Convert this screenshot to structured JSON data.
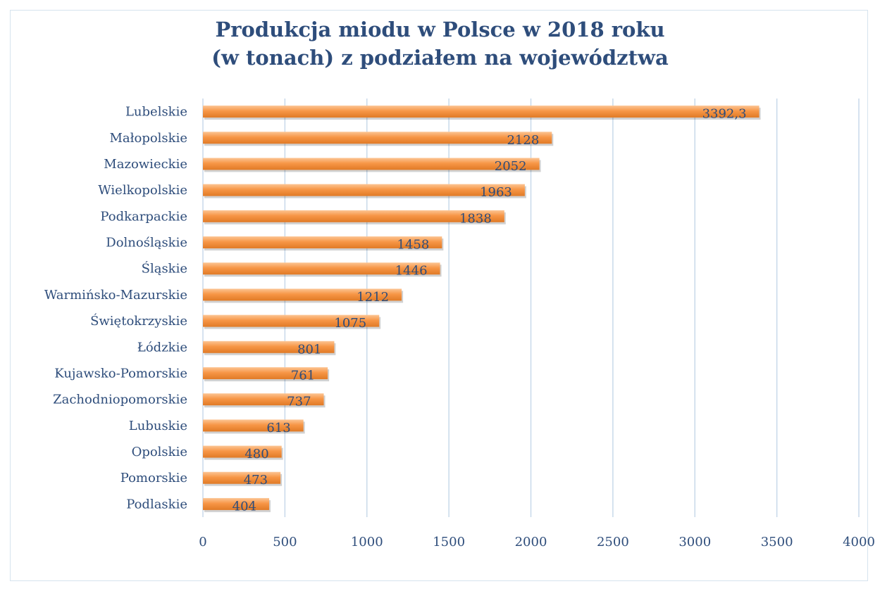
{
  "chart_data": {
    "type": "bar",
    "orientation": "horizontal",
    "title_line1": "Produkcja miodu w Polsce w 2018 roku",
    "title_line2": "(w tonach) z podziałem na województwa",
    "categories": [
      "Lubelskie",
      "Małopolskie",
      "Mazowieckie",
      "Wielkopolskie",
      "Podkarpackie",
      "Dolnośląskie",
      "Śląskie",
      "Warmińsko-Mazurskie",
      "Świętokrzyskie",
      "Łódzkie",
      "Kujawsko-Pomorskie",
      "Zachodniopomorskie",
      "Lubuskie",
      "Opolskie",
      "Pomorskie",
      "Podlaskie"
    ],
    "values": [
      3392.3,
      2128,
      2052,
      1963,
      1838,
      1458,
      1446,
      1212,
      1075,
      801,
      761,
      737,
      613,
      480,
      473,
      404
    ],
    "data_labels": [
      "3392,3",
      "2128",
      "2052",
      "1963",
      "1838",
      "1458",
      "1446",
      "1212",
      "1075",
      "801",
      "761",
      "737",
      "613",
      "480",
      "473",
      "404"
    ],
    "xticks": [
      "0",
      "500",
      "1000",
      "1500",
      "2000",
      "2500",
      "3000",
      "3500",
      "4000"
    ],
    "xlim": [
      0,
      4000
    ],
    "grid": true,
    "legend": "none",
    "colors": {
      "bar_light": "#fcc594",
      "bar_mid": "#f79646",
      "bar_dark": "#e07a26",
      "text": "#2e4d7b",
      "grid": "#c8d9ea"
    }
  }
}
